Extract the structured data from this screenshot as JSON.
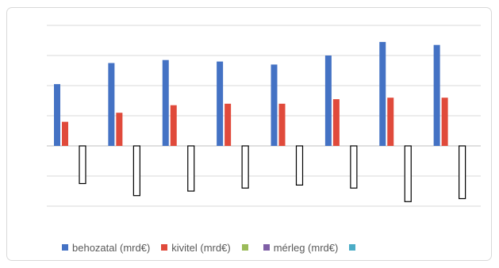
{
  "chart_data": {
    "type": "bar",
    "categories": [
      "",
      "",
      "",
      "",
      "",
      "",
      "",
      ""
    ],
    "series": [
      {
        "name": "behozatal (mrd€)",
        "color": "#4472c4",
        "values": [
          41,
          55,
          57,
          56,
          54,
          60,
          69,
          67
        ]
      },
      {
        "name": "kivitel (mrd€)",
        "color": "#e04a3b",
        "values": [
          16,
          22,
          27,
          28,
          28,
          31,
          32,
          32
        ]
      },
      {
        "name": "",
        "color": "#9bbb59",
        "values": [
          0,
          0,
          0,
          0,
          0,
          0,
          0,
          0
        ]
      },
      {
        "name": "mérleg (mrd€)",
        "color": "#7f5fa6",
        "values": [
          -25,
          -33,
          -30,
          -28,
          -26,
          -28,
          -37,
          -35
        ]
      },
      {
        "name": "",
        "color": "#4bacc6",
        "values": [
          0,
          0,
          0,
          0,
          0,
          0,
          0,
          0
        ]
      }
    ],
    "ylim": [
      -40,
      80
    ],
    "grid": true,
    "legend_position": "bottom",
    "title": "",
    "xlabel": "",
    "ylabel": ""
  }
}
